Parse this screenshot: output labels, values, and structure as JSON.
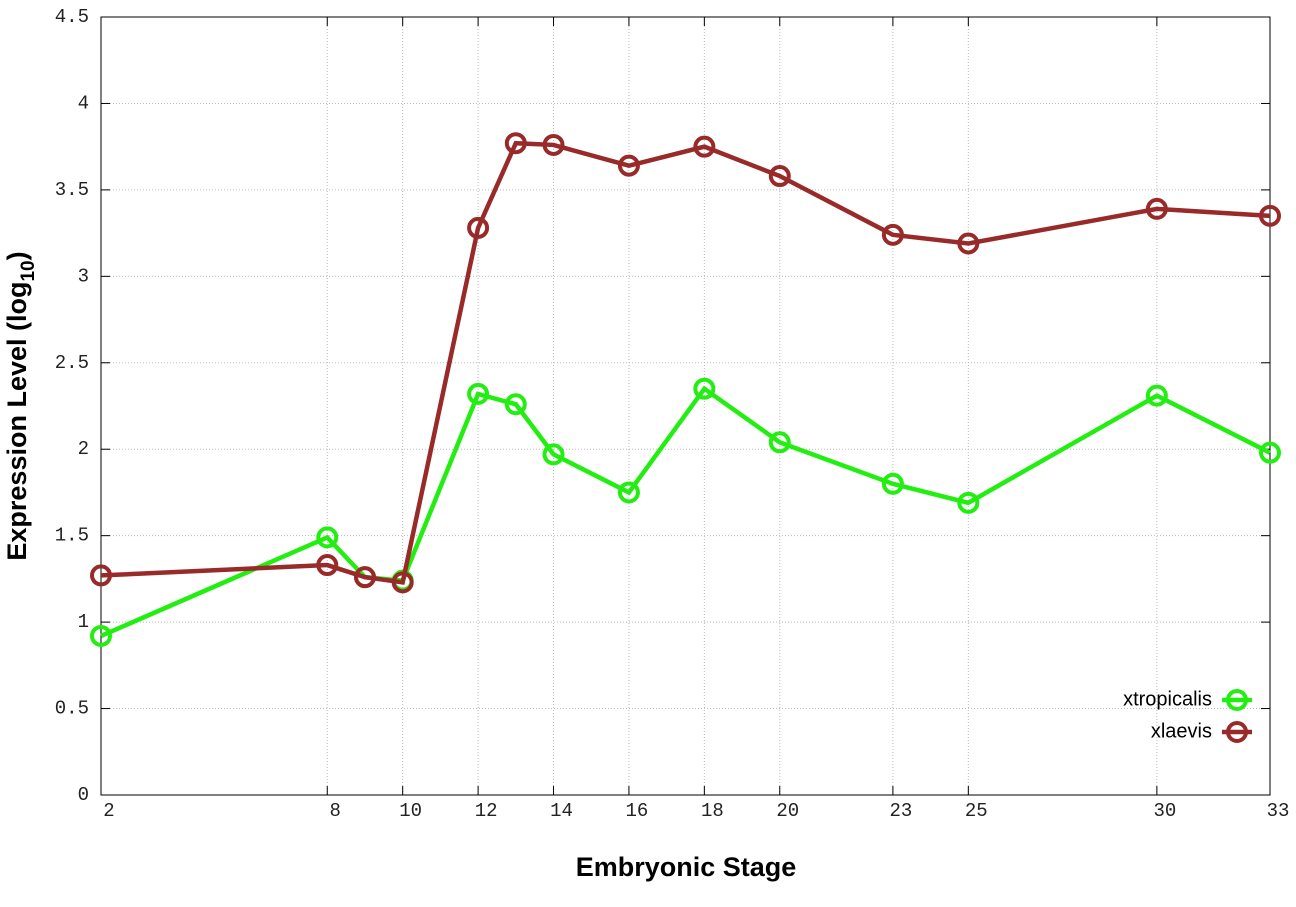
{
  "chart_data": {
    "type": "line",
    "x_label": "Embryonic Stage",
    "y_label": {
      "text": "Expression Level (log",
      "sub": "10",
      "end": ")"
    },
    "x": [
      2,
      8,
      9,
      10,
      12,
      13,
      14,
      16,
      18,
      20,
      23,
      25,
      30,
      33
    ],
    "series": [
      {
        "name": "xtropicalis",
        "color": "#22ee11",
        "values": [
          0.92,
          1.49,
          1.26,
          1.24,
          2.32,
          2.26,
          1.97,
          1.75,
          2.35,
          2.04,
          1.8,
          1.69,
          2.31,
          1.98
        ]
      },
      {
        "name": "xlaevis",
        "color": "#992a2a",
        "values": [
          1.27,
          1.33,
          1.26,
          1.23,
          3.28,
          3.77,
          3.76,
          3.64,
          3.75,
          3.58,
          3.24,
          3.19,
          3.39,
          3.35
        ]
      }
    ],
    "xlim": [
      2,
      33
    ],
    "xticks": [
      2,
      8,
      10,
      12,
      14,
      16,
      18,
      20,
      23,
      25,
      30,
      33
    ],
    "ylim": [
      0,
      4.5
    ],
    "yticks": [
      0,
      0.5,
      1,
      1.5,
      2,
      2.5,
      3,
      3.5,
      4,
      4.5
    ],
    "grid": true,
    "legend": "lower right"
  }
}
